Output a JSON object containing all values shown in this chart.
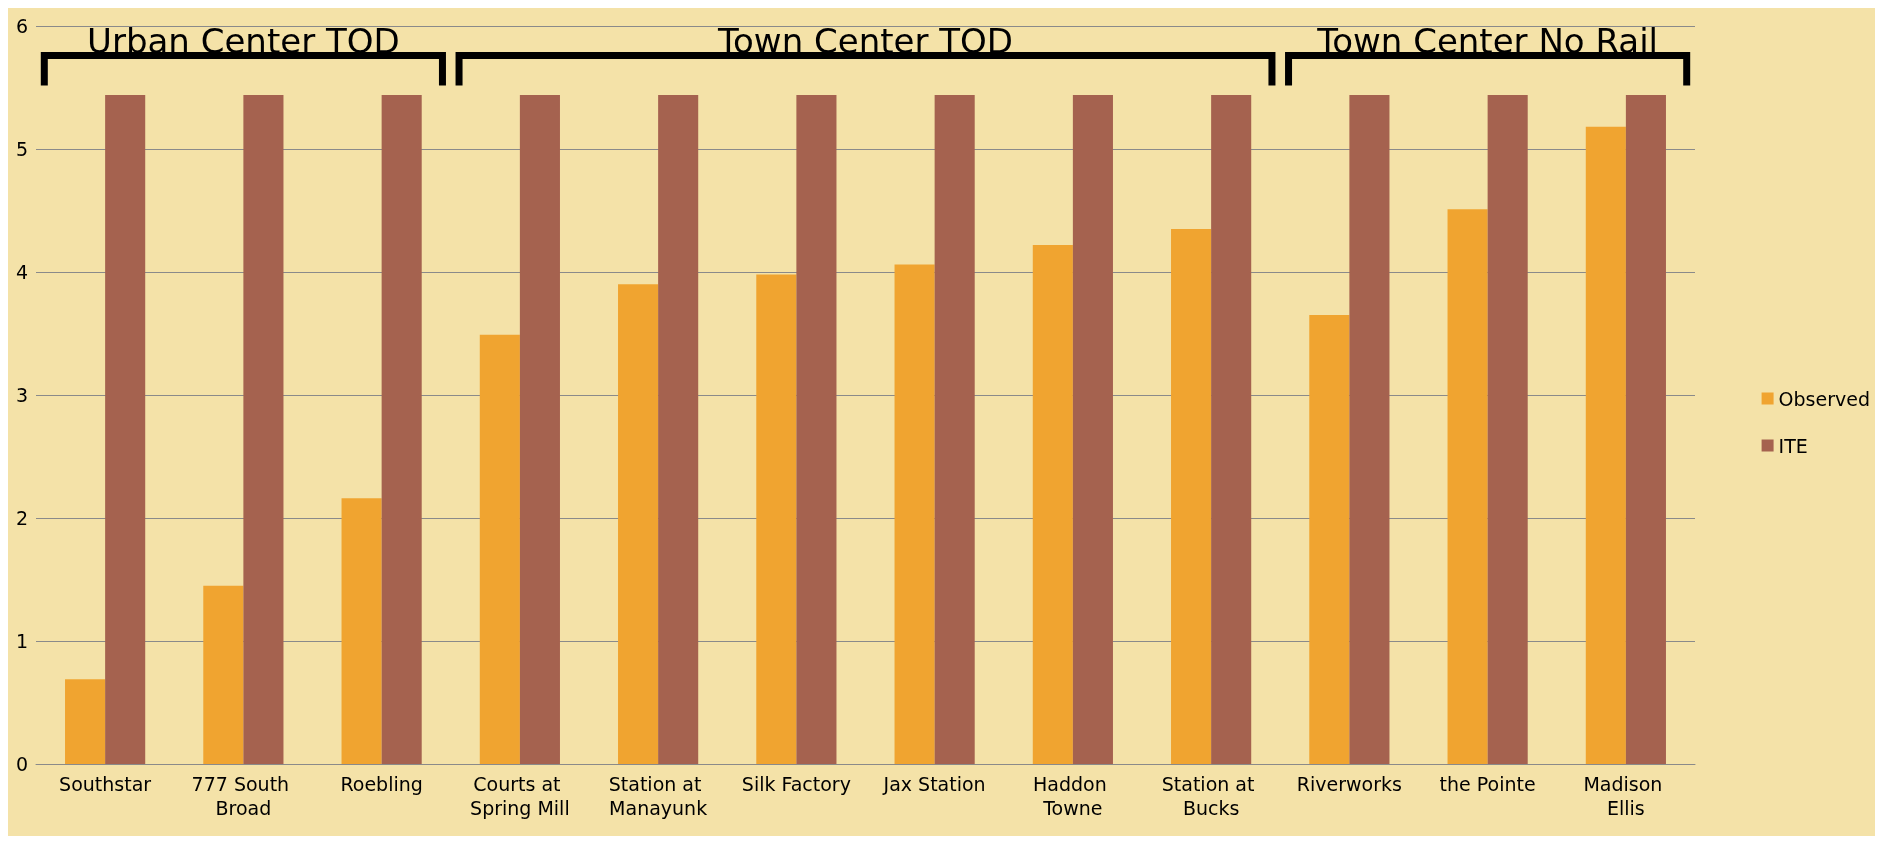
{
  "chart_data": {
    "type": "bar",
    "categories": [
      "Southstar",
      "777 South Broad",
      "Roebling",
      "Courts at Spring Mill",
      "Station at Manayunk",
      "Silk Factory",
      "Jax Station",
      "Haddon Towne",
      "Station at Bucks",
      "Riverworks",
      "the Pointe",
      "Madison Ellis"
    ],
    "series": [
      {
        "name": "Observed",
        "color": "#f0a430",
        "values": [
          0.69,
          1.45,
          2.16,
          3.49,
          3.9,
          3.98,
          4.06,
          4.22,
          4.35,
          3.65,
          4.51,
          5.18
        ]
      },
      {
        "name": "ITE",
        "color": "#a5624f",
        "values": [
          5.44,
          5.44,
          5.44,
          5.44,
          5.44,
          5.44,
          5.44,
          5.44,
          5.44,
          5.44,
          5.44,
          5.44
        ]
      }
    ],
    "annotations": [
      "Urban Center TOD",
      "Town Center TOD",
      "Town Center No Rail"
    ],
    "ylim": [
      0,
      6
    ],
    "yticks": [
      0,
      1,
      2,
      3,
      4,
      5,
      6
    ],
    "grid": "y",
    "legend": "right"
  }
}
